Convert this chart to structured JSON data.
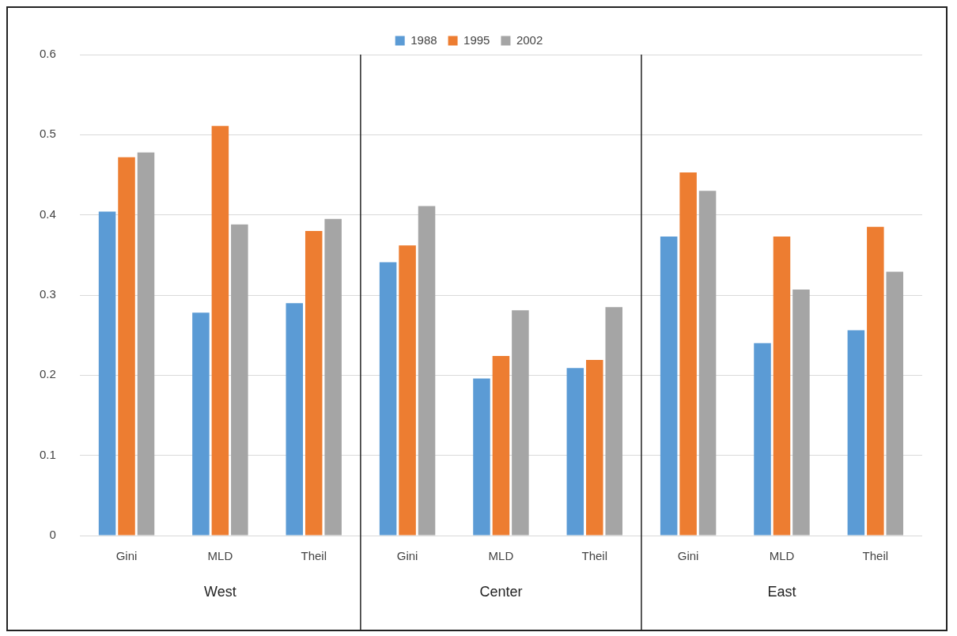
{
  "chart_data": {
    "type": "bar",
    "categories": [
      "Gini",
      "MLD",
      "Theil",
      "Gini",
      "MLD",
      "Theil",
      "Gini",
      "MLD",
      "Theil"
    ],
    "series": [
      {
        "name": "1988",
        "color": "#5b9bd5",
        "values": [
          0.404,
          0.278,
          0.29,
          0.341,
          0.196,
          0.209,
          0.373,
          0.24,
          0.256
        ]
      },
      {
        "name": "1995",
        "color": "#ed7d31",
        "values": [
          0.472,
          0.511,
          0.38,
          0.362,
          0.224,
          0.219,
          0.453,
          0.373,
          0.385
        ]
      },
      {
        "name": "2002",
        "color": "#a5a5a5",
        "values": [
          0.478,
          0.388,
          0.395,
          0.411,
          0.281,
          0.285,
          0.43,
          0.307,
          0.329
        ]
      }
    ],
    "ylim": [
      0,
      0.6
    ],
    "yticks": [
      0,
      0.1,
      0.2,
      0.3,
      0.4,
      0.5,
      0.6
    ],
    "grid": "y",
    "legend": "top",
    "annotations": [
      "West",
      "Center",
      "East"
    ]
  }
}
